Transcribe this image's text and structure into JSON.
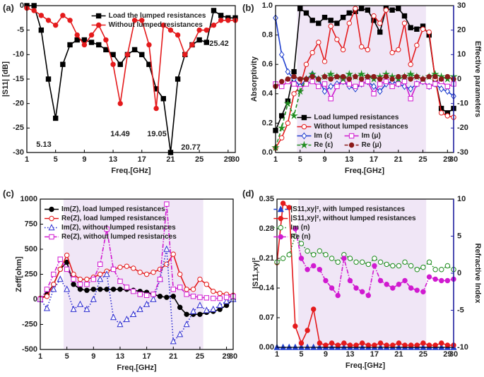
{
  "chart_data": [
    {
      "type": "line",
      "panel_label": "(a)",
      "xlabel": "Freq.[GHz]",
      "ylabel": "|S11| [dB]",
      "x": [
        1,
        2,
        3,
        4,
        5,
        6,
        7,
        8,
        9,
        10,
        11,
        12,
        13,
        14,
        15,
        16,
        17,
        18,
        19,
        20,
        21,
        22,
        23,
        24,
        25,
        26,
        27,
        28,
        29,
        30
      ],
      "xlim": [
        1,
        30
      ],
      "xticks": [
        1,
        5,
        9,
        13,
        17,
        21,
        25,
        29,
        30
      ],
      "ylim": [
        -30,
        0
      ],
      "yticks": [
        0,
        -5,
        -10,
        -15,
        -20,
        -25,
        -30
      ],
      "legend": "upper right",
      "annotations": [
        "5.13",
        "14.49",
        "19.05",
        "20.77",
        "25.42"
      ],
      "series": [
        {
          "name": "Load the lumped resistances",
          "color": "#000000",
          "marker": "square",
          "values": [
            0,
            0,
            -5,
            -15,
            -23,
            -12,
            -8,
            -7,
            -7,
            -7.5,
            -8,
            -9,
            -10,
            -12,
            -10,
            -9,
            -10,
            -12,
            -17,
            -19,
            -30,
            -15,
            -10,
            -8,
            -7,
            -7.5,
            -1,
            -2,
            -2.5,
            -2.5
          ]
        },
        {
          "name": "Without lumped resistances",
          "color": "#e41a1c",
          "marker": "circle",
          "values": [
            -0.5,
            -1,
            -2,
            -3,
            -4,
            -2,
            -3,
            -6,
            -8,
            -6,
            -4,
            -7,
            -12,
            -20,
            -10,
            -3,
            -3,
            -8,
            -21,
            -4,
            -5,
            -6,
            -10,
            -8,
            -5,
            -5,
            -4,
            -3,
            -3,
            -3
          ]
        }
      ]
    },
    {
      "type": "line",
      "panel_label": "(b)",
      "xlabel": "Freq.[GHz]",
      "ylabel": "Absorptivity",
      "y2label": "Effective parameters",
      "x": [
        1,
        2,
        3,
        4,
        5,
        6,
        7,
        8,
        9,
        10,
        11,
        12,
        13,
        14,
        15,
        16,
        17,
        18,
        19,
        20,
        21,
        22,
        23,
        24,
        25,
        26,
        27,
        28,
        29,
        30
      ],
      "xlim": [
        1,
        30
      ],
      "xticks": [
        1,
        5,
        9,
        13,
        17,
        21,
        25,
        29,
        30
      ],
      "ylim": [
        0,
        1
      ],
      "yticks": [
        {
          "value": 0,
          "label": "0.0"
        },
        0.2,
        0.4,
        0.6,
        0.8,
        {
          "value": 1,
          "label": "1.0"
        }
      ],
      "y2lim": [
        -30,
        30
      ],
      "y2ticks": [
        -30,
        -20,
        -10,
        0,
        10,
        20,
        30
      ],
      "y2_color": "#1f1fa8",
      "shade": [
        4.5,
        25.5
      ],
      "shade_color": "#ece0f4",
      "legend": "lower center",
      "series": [
        {
          "name": "Load lumped resistances",
          "color": "#000000",
          "marker": "square",
          "values": [
            0.15,
            0.25,
            0.35,
            0.55,
            0.98,
            0.95,
            0.9,
            0.88,
            0.92,
            0.9,
            0.88,
            0.92,
            0.95,
            0.96,
            0.98,
            0.97,
            0.9,
            0.82,
            0.98,
            0.97,
            0.98,
            0.93,
            0.85,
            0.84,
            0.86,
            0.8,
            0.5,
            0.3,
            0.27,
            0.3
          ]
        },
        {
          "name": "Without lumped resistances",
          "color": "#e41a1c",
          "marker": "open-circle",
          "values": [
            0.03,
            0.1,
            0.2,
            0.4,
            0.45,
            0.6,
            0.68,
            0.75,
            0.62,
            0.86,
            0.77,
            0.7,
            0.88,
            0.98,
            0.72,
            0.7,
            0.93,
            0.88,
            0.97,
            0.68,
            0.7,
            0.88,
            0.6,
            0.73,
            0.84,
            0.82,
            0.5,
            0.27,
            0.25,
            0.24
          ]
        },
        {
          "name": "Im (ε)",
          "color": "#1f3fcf",
          "marker": "open-diamond",
          "axis": "y2",
          "values": [
            25,
            10,
            3,
            0,
            -3,
            0,
            2,
            0,
            -5,
            -3,
            -2,
            -1,
            -3,
            -4,
            -2,
            -1,
            -3,
            -5,
            -2,
            -1,
            -2,
            -3,
            -4,
            -2,
            -1,
            -3,
            -2,
            -4,
            -5,
            -7
          ]
        },
        {
          "name": "Im (μ)",
          "color": "#d01ad0",
          "marker": "open-square",
          "axis": "y2",
          "values": [
            -2,
            -3,
            -1,
            -2,
            -4,
            -2,
            -1,
            -3,
            -2,
            -8,
            -3,
            -1,
            -2,
            -3,
            -2,
            -1,
            -6,
            -2,
            -1,
            -3,
            -2,
            -1,
            -8,
            -2,
            -1,
            -3,
            -2,
            -1,
            -3,
            -2
          ]
        },
        {
          "name": "Re (ε)",
          "color": "#1e8c1e",
          "marker": "star",
          "axis": "y2",
          "line_style": "dashed",
          "values": [
            -28,
            -20,
            -10,
            -15,
            -5,
            0,
            2,
            0,
            1,
            2,
            1,
            0,
            2,
            1,
            2,
            1,
            0,
            1,
            2,
            1,
            0,
            1,
            2,
            1,
            0,
            1,
            2,
            1,
            0,
            1
          ]
        },
        {
          "name": "Re (μ)",
          "color": "#8b1a1a",
          "marker": "circle",
          "axis": "y2",
          "line_style": "dashed",
          "values": [
            -3,
            -1,
            0,
            1,
            0,
            0,
            1,
            0,
            1,
            0,
            1,
            1,
            0,
            1,
            0,
            1,
            1,
            0,
            1,
            0,
            1,
            1,
            0,
            1,
            0,
            1,
            1,
            0,
            1,
            0
          ]
        }
      ]
    },
    {
      "type": "line",
      "panel_label": "(c)",
      "xlabel": "Freq.[GHz]",
      "ylabel": "Zeff[ohm]",
      "x": [
        1,
        2,
        3,
        4,
        5,
        6,
        7,
        8,
        9,
        10,
        11,
        12,
        13,
        14,
        15,
        16,
        17,
        18,
        19,
        20,
        21,
        22,
        23,
        24,
        25,
        26,
        27,
        28,
        29,
        30
      ],
      "xlim": [
        1,
        30
      ],
      "xticks": [
        1,
        5,
        9,
        13,
        17,
        21,
        25,
        29,
        30
      ],
      "ylim": [
        -500,
        1000
      ],
      "yticks": [
        -500,
        -250,
        0,
        250,
        500,
        750,
        1000
      ],
      "shade": [
        4.5,
        25.5
      ],
      "shade_color": "#ece0f4",
      "legend": "upper left",
      "series": [
        {
          "name": "Im(Z), load lumped resistances",
          "color": "#000000",
          "marker": "circle",
          "values": [
            0,
            50,
            150,
            300,
            370,
            150,
            100,
            90,
            100,
            100,
            100,
            100,
            100,
            100,
            90,
            80,
            70,
            50,
            30,
            20,
            30,
            -80,
            -150,
            -150,
            -150,
            -130,
            -120,
            -100,
            -60,
            0
          ]
        },
        {
          "name": "Re(Z), load lumped resistances",
          "color": "#e41a1c",
          "marker": "open-circle",
          "values": [
            10,
            30,
            150,
            300,
            440,
            250,
            200,
            200,
            220,
            250,
            280,
            300,
            320,
            330,
            310,
            270,
            250,
            270,
            300,
            350,
            450,
            250,
            100,
            100,
            200,
            150,
            80,
            60,
            50,
            40
          ]
        },
        {
          "name": "Im(Z), without lumped resistances",
          "color": "#2b2bd0",
          "marker": "open-triangle",
          "line_style": "dotted",
          "values": [
            0,
            -90,
            100,
            200,
            100,
            -100,
            -50,
            -100,
            0,
            200,
            250,
            -180,
            -250,
            -200,
            -150,
            -100,
            -50,
            0,
            200,
            500,
            -420,
            -350,
            -250,
            -120,
            -60,
            -110,
            -100,
            -60,
            -20,
            0
          ]
        },
        {
          "name": "Re(Z), without lumped resistances",
          "color": "#d01ad0",
          "marker": "open-square",
          "line_style": "dashdot",
          "values": [
            0,
            100,
            250,
            400,
            300,
            200,
            150,
            150,
            200,
            350,
            700,
            300,
            180,
            120,
            80,
            50,
            40,
            50,
            200,
            950,
            100,
            120,
            50,
            30,
            20,
            15,
            10,
            10,
            20,
            30
          ]
        }
      ]
    },
    {
      "type": "line",
      "panel_label": "(d)",
      "xlabel": "Freq.[GHz]",
      "ylabel": "|S11,xy|²",
      "y2label": "Refractive Index",
      "x": [
        1,
        2,
        3,
        4,
        5,
        6,
        7,
        8,
        9,
        10,
        11,
        12,
        13,
        14,
        15,
        16,
        17,
        18,
        19,
        20,
        21,
        22,
        23,
        24,
        25,
        26,
        27,
        28,
        29,
        30
      ],
      "xlim": [
        1,
        30
      ],
      "xticks": [
        1,
        5,
        9,
        13,
        17,
        21,
        25,
        29,
        30
      ],
      "ylim": [
        0,
        0.35
      ],
      "yticks": [
        {
          "value": 0,
          "label": "0.00"
        },
        {
          "value": 0.07,
          "label": "0.07"
        },
        {
          "value": 0.14,
          "label": "0.14"
        },
        {
          "value": 0.21,
          "label": "0.21"
        },
        {
          "value": 0.28,
          "label": "0.28"
        },
        {
          "value": 0.35,
          "label": "0.35"
        }
      ],
      "y2lim": [
        -10,
        10
      ],
      "y2ticks": [
        -10,
        -5,
        0,
        5,
        10
      ],
      "y2_color": "#1f1fa8",
      "shade": [
        4.5,
        25.5
      ],
      "shade_color": "#ece0f4",
      "legend": "upper center",
      "series": [
        {
          "name": "|S11,xy|², with lumped resistances",
          "color": "#1f3fcf",
          "marker": "triangle",
          "line_style": "dashed",
          "values": [
            0,
            0,
            0,
            0,
            0,
            0,
            0,
            0,
            0,
            0,
            0,
            0,
            0,
            0,
            0,
            0,
            0,
            0,
            0,
            0,
            0,
            0,
            0,
            0,
            0,
            0,
            0,
            0,
            0,
            0
          ]
        },
        {
          "name": "|S11,xy|², without lumped resistances",
          "color": "#e41a1c",
          "marker": "circle",
          "values": [
            0.2,
            0.34,
            0.33,
            0.05,
            0.01,
            0.04,
            0.09,
            0.01,
            0.005,
            0.01,
            0.005,
            0.01,
            0.005,
            0.005,
            0.01,
            0.005,
            0.005,
            0.01,
            0.005,
            0.005,
            0.01,
            0.005,
            0.005,
            0.005,
            0.01,
            0.005,
            0.005,
            0.01,
            0.005,
            0.005
          ]
        },
        {
          "name": "Im (n)",
          "color": "#1e8c1e",
          "marker": "open-circle",
          "axis": "y2",
          "line_style": "dotted",
          "values": [
            1.5,
            2,
            2.5,
            5,
            4,
            3,
            2.5,
            3,
            2.5,
            2,
            1.5,
            2.5,
            2,
            1.5,
            1.5,
            1.2,
            2,
            1.5,
            1.2,
            1,
            1,
            1.5,
            1,
            0.5,
            0.8,
            1.5,
            0.5,
            0.5,
            1,
            0.5
          ]
        },
        {
          "name": "Re (n)",
          "color": "#d01ad0",
          "marker": "circle",
          "axis": "y2",
          "line_style": "dashdot",
          "values": [
            null,
            null,
            null,
            6,
            2,
            0.5,
            1,
            0.5,
            -1,
            -2,
            -3,
            2,
            -1,
            -2,
            -2.5,
            -3,
            1,
            -1,
            -1.5,
            -2,
            -1.5,
            -1,
            -2,
            -2.3,
            -2.5,
            -0.5,
            -0.8,
            -1,
            -1,
            -0.8
          ]
        }
      ]
    }
  ]
}
